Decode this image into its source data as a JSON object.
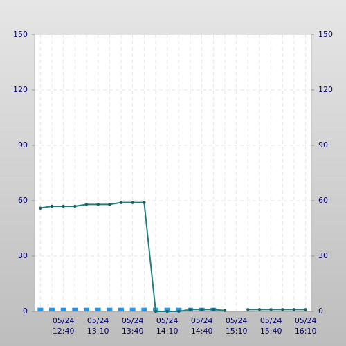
{
  "chart_data": {
    "type": "line",
    "categories": [
      null,
      null,
      [
        "05/24",
        "12:40"
      ],
      null,
      null,
      [
        "05/24",
        "13:10"
      ],
      null,
      null,
      [
        "05/24",
        "13:40"
      ],
      null,
      null,
      [
        "05/24",
        "14:10"
      ],
      null,
      null,
      [
        "05/24",
        "14:40"
      ],
      null,
      null,
      [
        "05/24",
        "15:10"
      ],
      null,
      null,
      [
        "05/24",
        "15:40"
      ],
      null,
      null,
      [
        "05/24",
        "16:10"
      ]
    ],
    "series": [
      {
        "type": "bar",
        "color": "#1e96f0",
        "values": [
          2,
          2,
          2,
          2,
          2,
          2,
          2,
          2,
          2,
          2,
          2,
          2,
          2,
          2,
          2,
          2,
          0,
          null,
          0,
          0,
          0,
          0,
          0,
          0
        ]
      },
      {
        "type": "line",
        "color": "#1f7f7f",
        "values": [
          56,
          57,
          57,
          57,
          58,
          58,
          58,
          59,
          59,
          59,
          0,
          0,
          0,
          1,
          1,
          1,
          0.5,
          null,
          1,
          1,
          1,
          1,
          1,
          1
        ]
      }
    ],
    "ylim": [
      0,
      150
    ],
    "yticks": [
      0,
      30,
      60,
      90,
      120,
      150
    ],
    "y2lim": [
      0,
      150
    ],
    "y2ticks": [
      0,
      30,
      60,
      90,
      120,
      150
    ],
    "grid": true
  }
}
